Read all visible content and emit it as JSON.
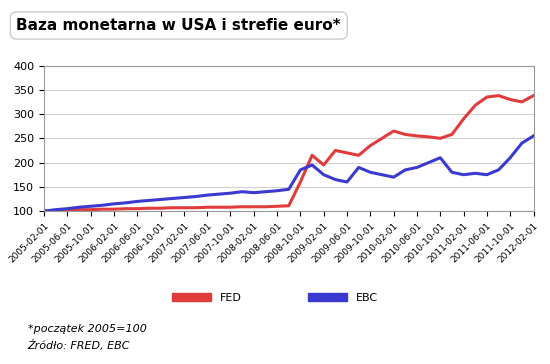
{
  "chart_data": {
    "type": "line",
    "title": "Baza monetarna w USA i strefie euro*",
    "annotations": [
      "*początek 2005=100",
      "Źródło: FRED, EBC"
    ],
    "categories": [
      "2005-02-01",
      null,
      "2005-06-01",
      null,
      "2005-10-01",
      null,
      "2006-02-01",
      null,
      "2006-06-01",
      null,
      "2006-10-01",
      null,
      "2007-02-01",
      null,
      "2007-06-01",
      null,
      "2007-10-01",
      null,
      "2008-02-01",
      null,
      "2008-06-01",
      null,
      "2008-10-01",
      null,
      "2009-02-01",
      null,
      "2009-06-01",
      null,
      "2009-10-01",
      null,
      "2010-02-01",
      null,
      "2010-06-01",
      null,
      "2010-10-01",
      null,
      "2011-02-01",
      null,
      "2011-06-01",
      null,
      "2011-10-01",
      null,
      "2012-02-01"
    ],
    "series": [
      {
        "name": "FED",
        "color": "#e03c3c",
        "values": [
          100,
          101,
          102,
          103,
          103,
          104,
          104,
          105,
          105,
          106,
          106,
          107,
          107,
          107,
          108,
          108,
          108,
          109,
          109,
          109,
          110,
          111,
          160,
          215,
          195,
          225,
          220,
          215,
          235,
          250,
          265,
          258,
          255,
          253,
          250,
          258,
          290,
          318,
          335,
          338,
          330,
          325,
          338
        ]
      },
      {
        "name": "EBC",
        "color": "#3a3ad0",
        "values": [
          100,
          103,
          105,
          108,
          110,
          112,
          115,
          117,
          120,
          122,
          124,
          126,
          128,
          130,
          133,
          135,
          137,
          140,
          138,
          140,
          142,
          145,
          185,
          195,
          175,
          165,
          160,
          190,
          180,
          175,
          170,
          185,
          190,
          200,
          210,
          180,
          175,
          178,
          175,
          185,
          210,
          240,
          255
        ]
      }
    ],
    "ylim": [
      100,
      400
    ],
    "yticks": [
      100,
      150,
      200,
      250,
      300,
      350,
      400
    ],
    "grid": true,
    "legend": "lower center"
  }
}
